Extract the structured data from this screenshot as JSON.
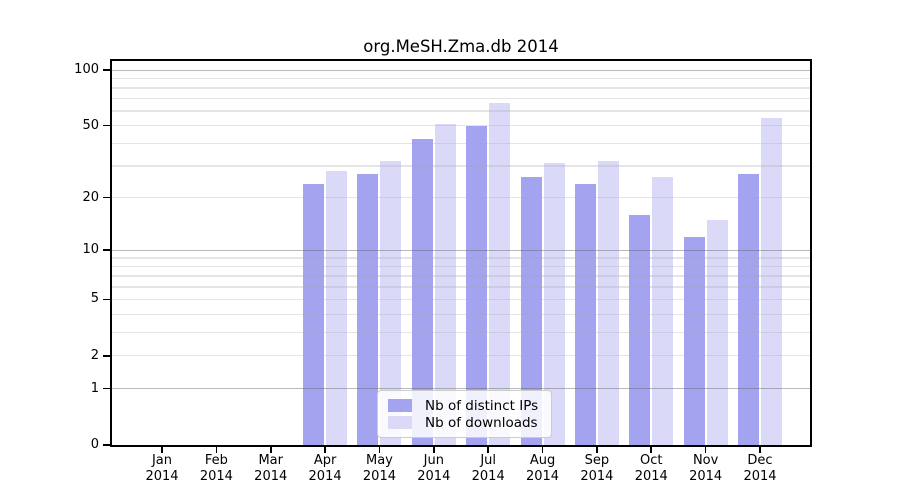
{
  "chart_data": {
    "type": "bar",
    "title": "org.MeSH.Zma.db 2014",
    "year_label": "2014",
    "months": [
      "Jan",
      "Feb",
      "Mar",
      "Apr",
      "May",
      "Jun",
      "Jul",
      "Aug",
      "Sep",
      "Oct",
      "Nov",
      "Dec"
    ],
    "series": [
      {
        "name": "Nb of distinct IPs",
        "color": "#a3a3f0",
        "values": [
          0,
          0,
          0,
          24,
          27,
          42,
          50,
          26,
          24,
          16,
          12,
          27
        ]
      },
      {
        "name": "Nb of downloads",
        "color": "#dadaf8",
        "values": [
          0,
          0,
          0,
          28,
          32,
          51,
          66,
          31,
          32,
          26,
          15,
          55
        ]
      }
    ],
    "yscale": "log1p",
    "ylim": [
      0,
      112
    ],
    "yticks": [
      0,
      1,
      2,
      5,
      10,
      20,
      50,
      100
    ],
    "grid": {
      "major": [
        1,
        10,
        100
      ],
      "minor": [
        2,
        3,
        4,
        5,
        6,
        7,
        8,
        9,
        20,
        30,
        40,
        50,
        60,
        70,
        80,
        90
      ]
    },
    "legend_position": "lower center",
    "xlabel": "",
    "ylabel": ""
  }
}
